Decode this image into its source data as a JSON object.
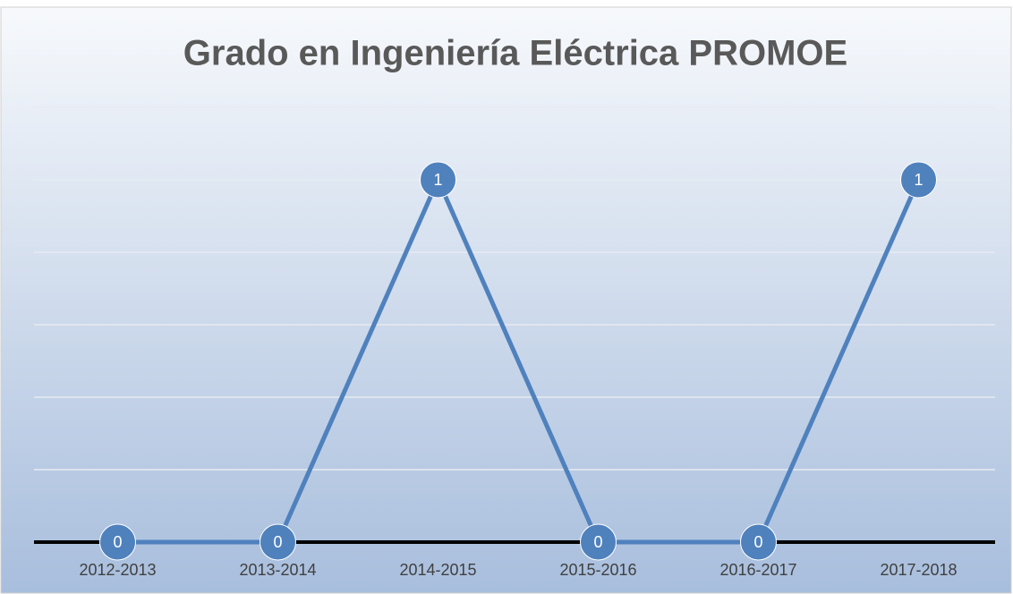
{
  "chart_data": {
    "type": "line",
    "title": "Grado en Ingeniería Eléctrica PROMOE",
    "categories": [
      "2012-2013",
      "2013-2014",
      "2014-2015",
      "2015-2016",
      "2016-2017",
      "2017-2018"
    ],
    "values": [
      0,
      0,
      1,
      0,
      0,
      1
    ],
    "color": "#4f81bd",
    "ylim": [
      0,
      1.2
    ],
    "yticks": [
      0,
      0.2,
      0.4,
      0.6,
      0.8,
      1,
      1.2
    ],
    "grid": true
  }
}
